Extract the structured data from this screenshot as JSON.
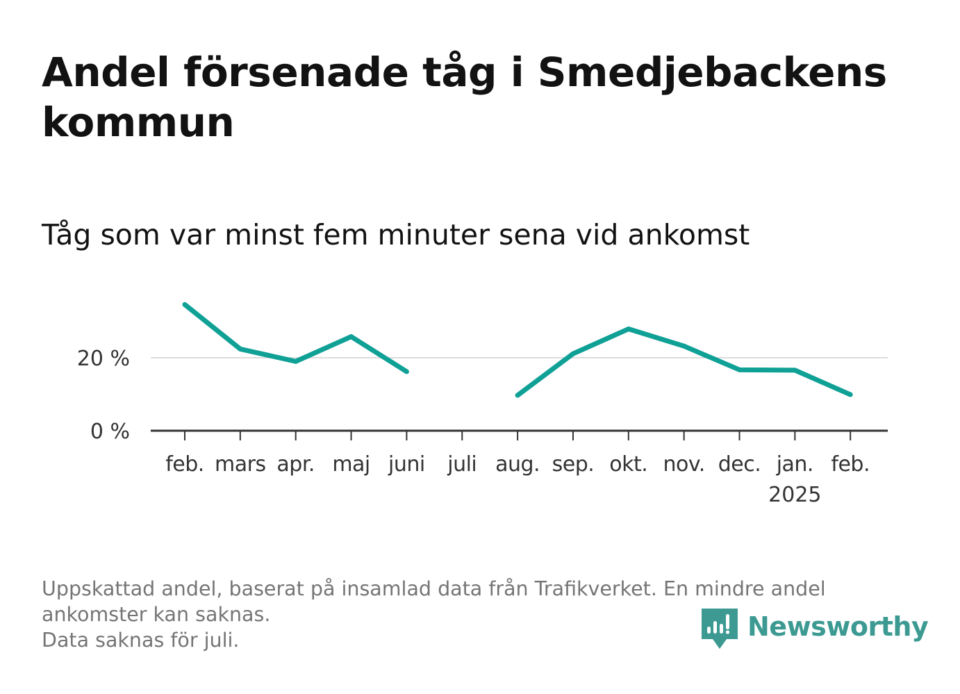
{
  "title": "Andel försenade tåg i Smedjebackens kommun",
  "subtitle": "Tåg som var minst fem minuter sena vid ankomst",
  "footer": {
    "line1": "Uppskattad andel, baserat på insamlad data från Trafikverket. En mindre andel",
    "line2": "ankomster kan saknas.",
    "line3": "Data saknas för juli."
  },
  "brand": {
    "name": "Newsworthy",
    "icon": "newsworthy-logo-icon",
    "color": "#3c9a92"
  },
  "chart_data": {
    "type": "line",
    "title": "Andel försenade tåg i Smedjebackens kommun",
    "subtitle": "Tåg som var minst fem minuter sena vid ankomst",
    "categories": [
      "feb.",
      "mars",
      "apr.",
      "maj",
      "juni",
      "juli",
      "aug.",
      "sep.",
      "okt.",
      "nov.",
      "dec.",
      "jan.",
      "feb."
    ],
    "year_label": "2025",
    "year_label_under": "jan.",
    "series": [
      {
        "values": [
          34.6,
          22.4,
          19.0,
          25.8,
          16.2,
          null,
          9.7,
          21.1,
          27.9,
          23.2,
          16.7,
          16.6,
          9.9
        ]
      }
    ],
    "ylim": [
      0,
      40
    ],
    "yticks": [
      0,
      20
    ],
    "ytick_labels": [
      "0 %",
      "20 %"
    ],
    "xlabel": "",
    "ylabel": "",
    "grid": true,
    "colors": {
      "line": "#0fa096",
      "grid": "#dcdcdc",
      "axis": "#333333",
      "tick_text": "#333333"
    }
  }
}
